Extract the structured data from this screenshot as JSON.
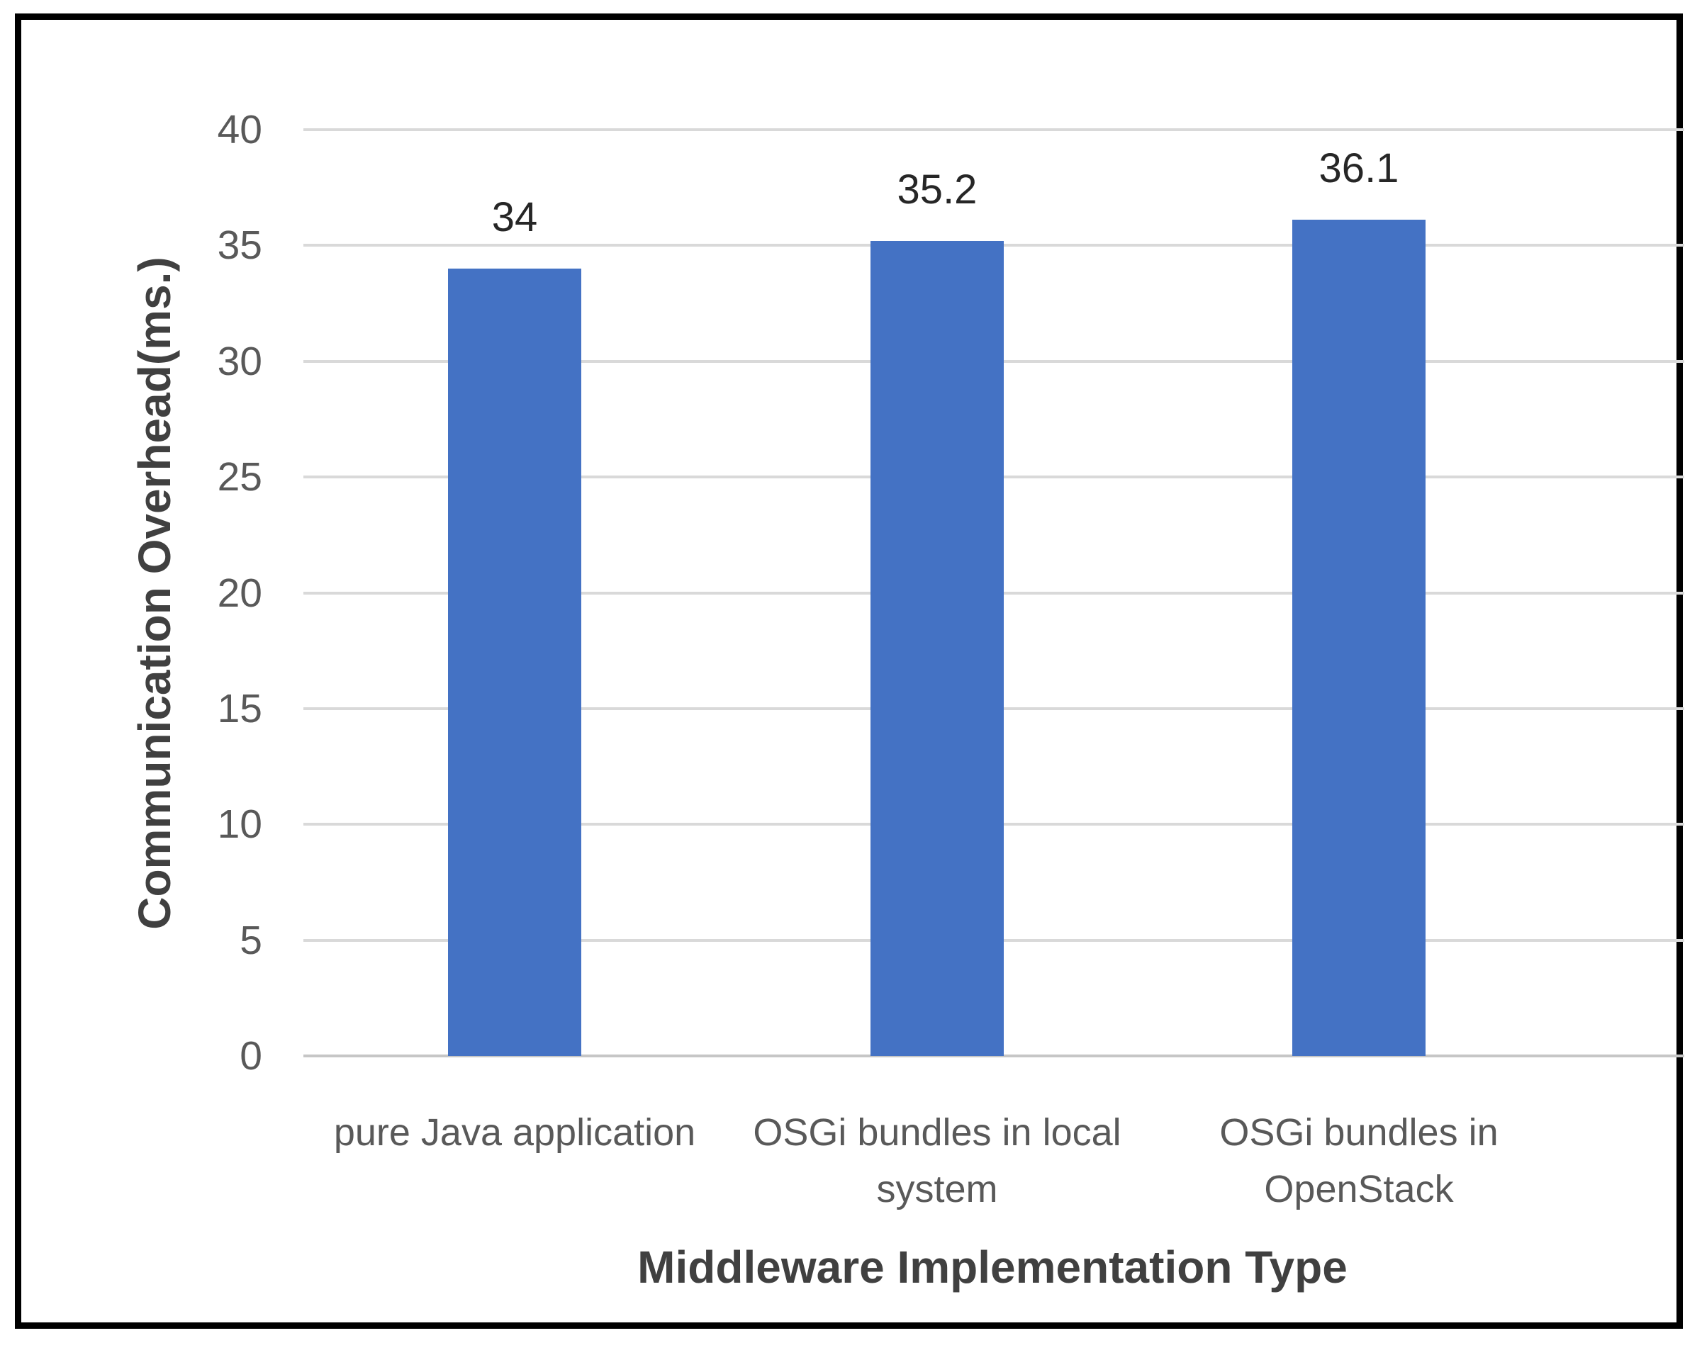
{
  "chart_data": {
    "type": "bar",
    "title": "",
    "xlabel": "Middleware Implementation Type",
    "ylabel": "Communication Overhead(ms.)",
    "categories": [
      "pure Java application",
      "OSGi bundles in local system",
      "OSGi bundles in OpenStack"
    ],
    "values": [
      34,
      35.2,
      36.1
    ],
    "value_labels": [
      "34",
      "35.2",
      "36.1"
    ],
    "ylim": [
      0,
      40
    ],
    "ytick_step": 5,
    "yticks": [
      0,
      5,
      10,
      15,
      20,
      25,
      30,
      35,
      40
    ],
    "grid": "horizontal-only",
    "legend": "none",
    "colors": {
      "bar": "#4472C4",
      "gridline": "#D9D9D9",
      "axis_line": "#C6C6C6",
      "tick_label": "#595959",
      "category_label": "#595959",
      "axis_title": "#404040",
      "value_label": "#262626",
      "frame_border": "#000000"
    }
  }
}
